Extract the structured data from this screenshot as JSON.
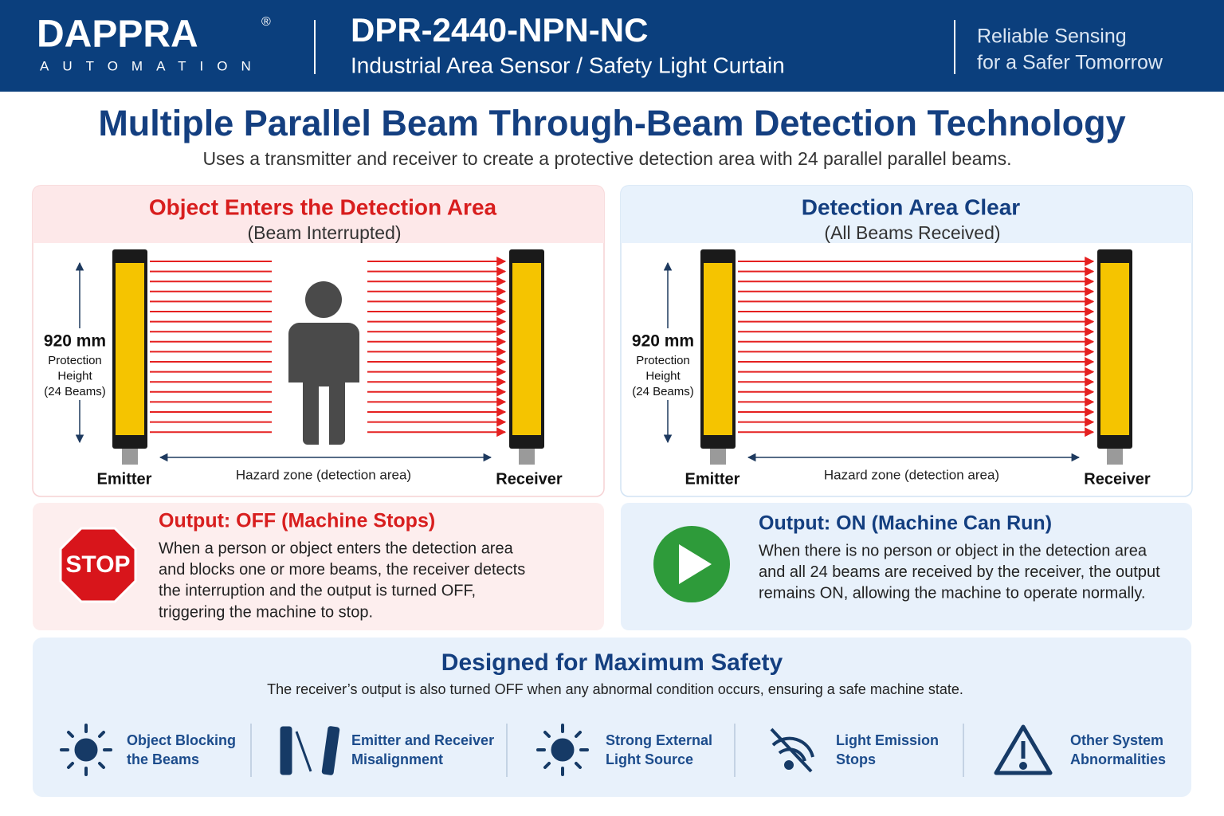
{
  "header": {
    "logo": "DAPPRA",
    "registered": "®",
    "logo_sub": "AUTOMATION",
    "model": "DPR-2440-NPN-NC",
    "product": "Industrial Area Sensor / Safety Light Curtain",
    "tagline": [
      "Reliable Sensing",
      "for a Safer Tomorrow"
    ]
  },
  "main": {
    "title": "Multiple Parallel Beam Through-Beam Detection Technology",
    "subtitle": "Uses a transmitter and receiver to create a protective detection area with 24 parallel parallel beams."
  },
  "panels": [
    {
      "title": "Object Enters the Detection Area",
      "subtitle": "(Beam Interrupted)",
      "height": "920 mm",
      "height_lines": [
        "Protection",
        "Height",
        "(24 Beams)"
      ],
      "emitter": "Emitter",
      "receiver": "Receiver",
      "zone": "Hazard zone (detection area)",
      "icon": "STOP",
      "output_title": "Output: OFF (Machine Stops)",
      "output_text": [
        "When a person or object enters the detection area",
        "and blocks one or more beams, the receiver detects",
        "the interruption and the output is turned OFF,",
        "triggering the machine to stop."
      ]
    },
    {
      "title": "Detection Area Clear",
      "subtitle": "(All Beams Received)",
      "height": "920 mm",
      "height_lines": [
        "Protection",
        "Height",
        "(24 Beams)"
      ],
      "emitter": "Emitter",
      "receiver": "Receiver",
      "zone": "Hazard zone (detection area)",
      "output_title": "Output: ON (Machine Can Run)",
      "output_text": [
        "When there is no person or object in the detection area",
        "and all 24 beams are received by the receiver, the output",
        "remains ON, allowing the machine to operate normally."
      ]
    }
  ],
  "safety": {
    "title": "Designed for Maximum Safety",
    "subtitle": "The receiver’s output is also turned OFF when any abnormal condition occurs, ensuring a safe machine state.",
    "items": [
      {
        "lines": [
          "Object Blocking",
          "the Beams"
        ]
      },
      {
        "lines": [
          "Emitter and Receiver",
          "Misalignment"
        ]
      },
      {
        "lines": [
          "Strong External",
          "Light Source"
        ]
      },
      {
        "lines": [
          "Light Emission",
          "Stops"
        ]
      },
      {
        "lines": [
          "Other System",
          "Abnormalities"
        ]
      }
    ]
  }
}
